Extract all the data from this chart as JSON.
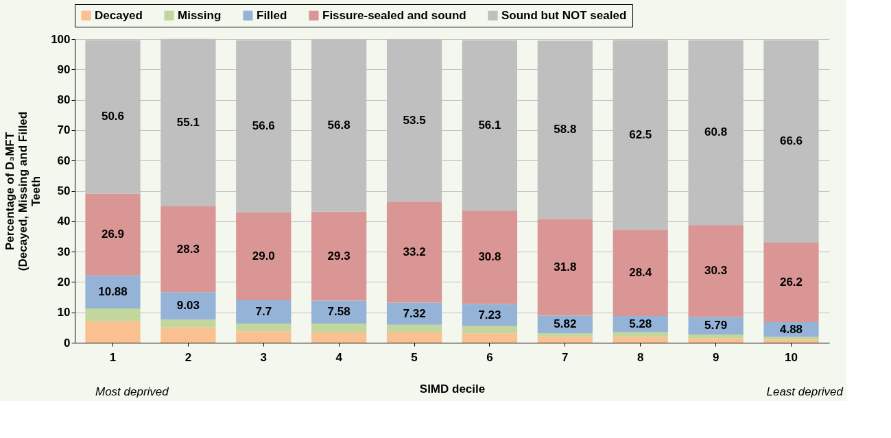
{
  "chart_data": {
    "type": "bar",
    "stacked": true,
    "xlabel": "SIMD decile",
    "ylabel": "Percentage of D₃MFT (Decayed, Missing and Filled Teeth",
    "categories": [
      "1",
      "2",
      "3",
      "4",
      "5",
      "6",
      "7",
      "8",
      "9",
      "10"
    ],
    "series": [
      {
        "name": "Decayed",
        "color": "#fac090",
        "values": [
          7.1,
          5.0,
          3.8,
          3.4,
          3.4,
          3.1,
          1.9,
          1.9,
          1.5,
          1.1
        ]
      },
      {
        "name": "Missing",
        "color": "#c3d69b",
        "values": [
          4.2,
          2.6,
          2.5,
          2.9,
          2.5,
          2.4,
          1.2,
          1.6,
          1.2,
          0.8
        ]
      },
      {
        "name": "Filled",
        "color": "#95b3d7",
        "values": [
          10.88,
          9.03,
          7.7,
          7.58,
          7.32,
          7.23,
          5.82,
          5.28,
          5.79,
          4.88
        ],
        "value_labels": [
          "10.88",
          "9.03",
          "7.7",
          "7.58",
          "7.32",
          "7.23",
          "5.82",
          "5.28",
          "5.79",
          "4.88"
        ]
      },
      {
        "name": "Fissure-sealed and sound",
        "color": "#d99694",
        "values": [
          26.9,
          28.3,
          29.0,
          29.3,
          33.2,
          30.8,
          31.8,
          28.4,
          30.3,
          26.2
        ],
        "value_labels": [
          "26.9",
          "28.3",
          "29.0",
          "29.3",
          "33.2",
          "30.8",
          "31.8",
          "28.4",
          "30.3",
          "26.2"
        ]
      },
      {
        "name": "Sound but NOT sealed",
        "color": "#bfbfbf",
        "values": [
          50.6,
          55.1,
          56.6,
          56.8,
          53.5,
          56.1,
          58.8,
          62.5,
          60.8,
          66.6
        ],
        "value_labels": [
          "50.6",
          "55.1",
          "56.6",
          "56.8",
          "53.5",
          "56.1",
          "58.8",
          "62.5",
          "60.8",
          "66.6"
        ]
      }
    ],
    "ylim": [
      0,
      100
    ],
    "yticks": [
      0,
      10,
      20,
      30,
      40,
      50,
      60,
      70,
      80,
      90,
      100
    ],
    "grid": "y",
    "legend": "top",
    "annotations": [
      "Most deprived",
      "Least deprived"
    ]
  }
}
